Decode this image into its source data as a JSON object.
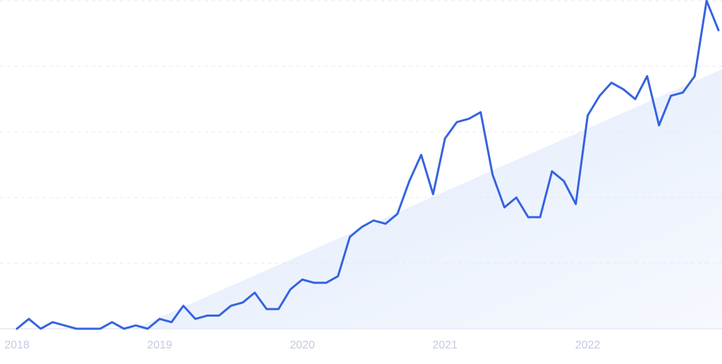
{
  "chart_data": {
    "type": "line",
    "categories": [
      "2018",
      null,
      null,
      null,
      null,
      null,
      null,
      null,
      null,
      null,
      null,
      null,
      "2019",
      null,
      null,
      null,
      null,
      null,
      null,
      null,
      null,
      null,
      null,
      null,
      "2020",
      null,
      null,
      null,
      null,
      null,
      null,
      null,
      null,
      null,
      null,
      null,
      "2021",
      null,
      null,
      null,
      null,
      null,
      null,
      null,
      null,
      null,
      null,
      null,
      "2022",
      null,
      null,
      null,
      null,
      null,
      null,
      null,
      null,
      null,
      null,
      null
    ],
    "series": [
      {
        "color": "#3563e0",
        "values": [
          0,
          3,
          0,
          2,
          1,
          0,
          0,
          0,
          2,
          0,
          1,
          0,
          3,
          2,
          7,
          3,
          4,
          4,
          7,
          8,
          11,
          6,
          6,
          12,
          15,
          14,
          14,
          16,
          28,
          31,
          33,
          32,
          35,
          45,
          53,
          41,
          58,
          63,
          64,
          66,
          47,
          37,
          40,
          34,
          34,
          48,
          45,
          38,
          65,
          71,
          75,
          73,
          70,
          77,
          62,
          71,
          72,
          77,
          100,
          91
        ]
      }
    ],
    "ylim": [
      0,
      100
    ],
    "yticks": [
      0,
      20,
      40,
      60,
      80,
      100
    ],
    "grid": true
  }
}
